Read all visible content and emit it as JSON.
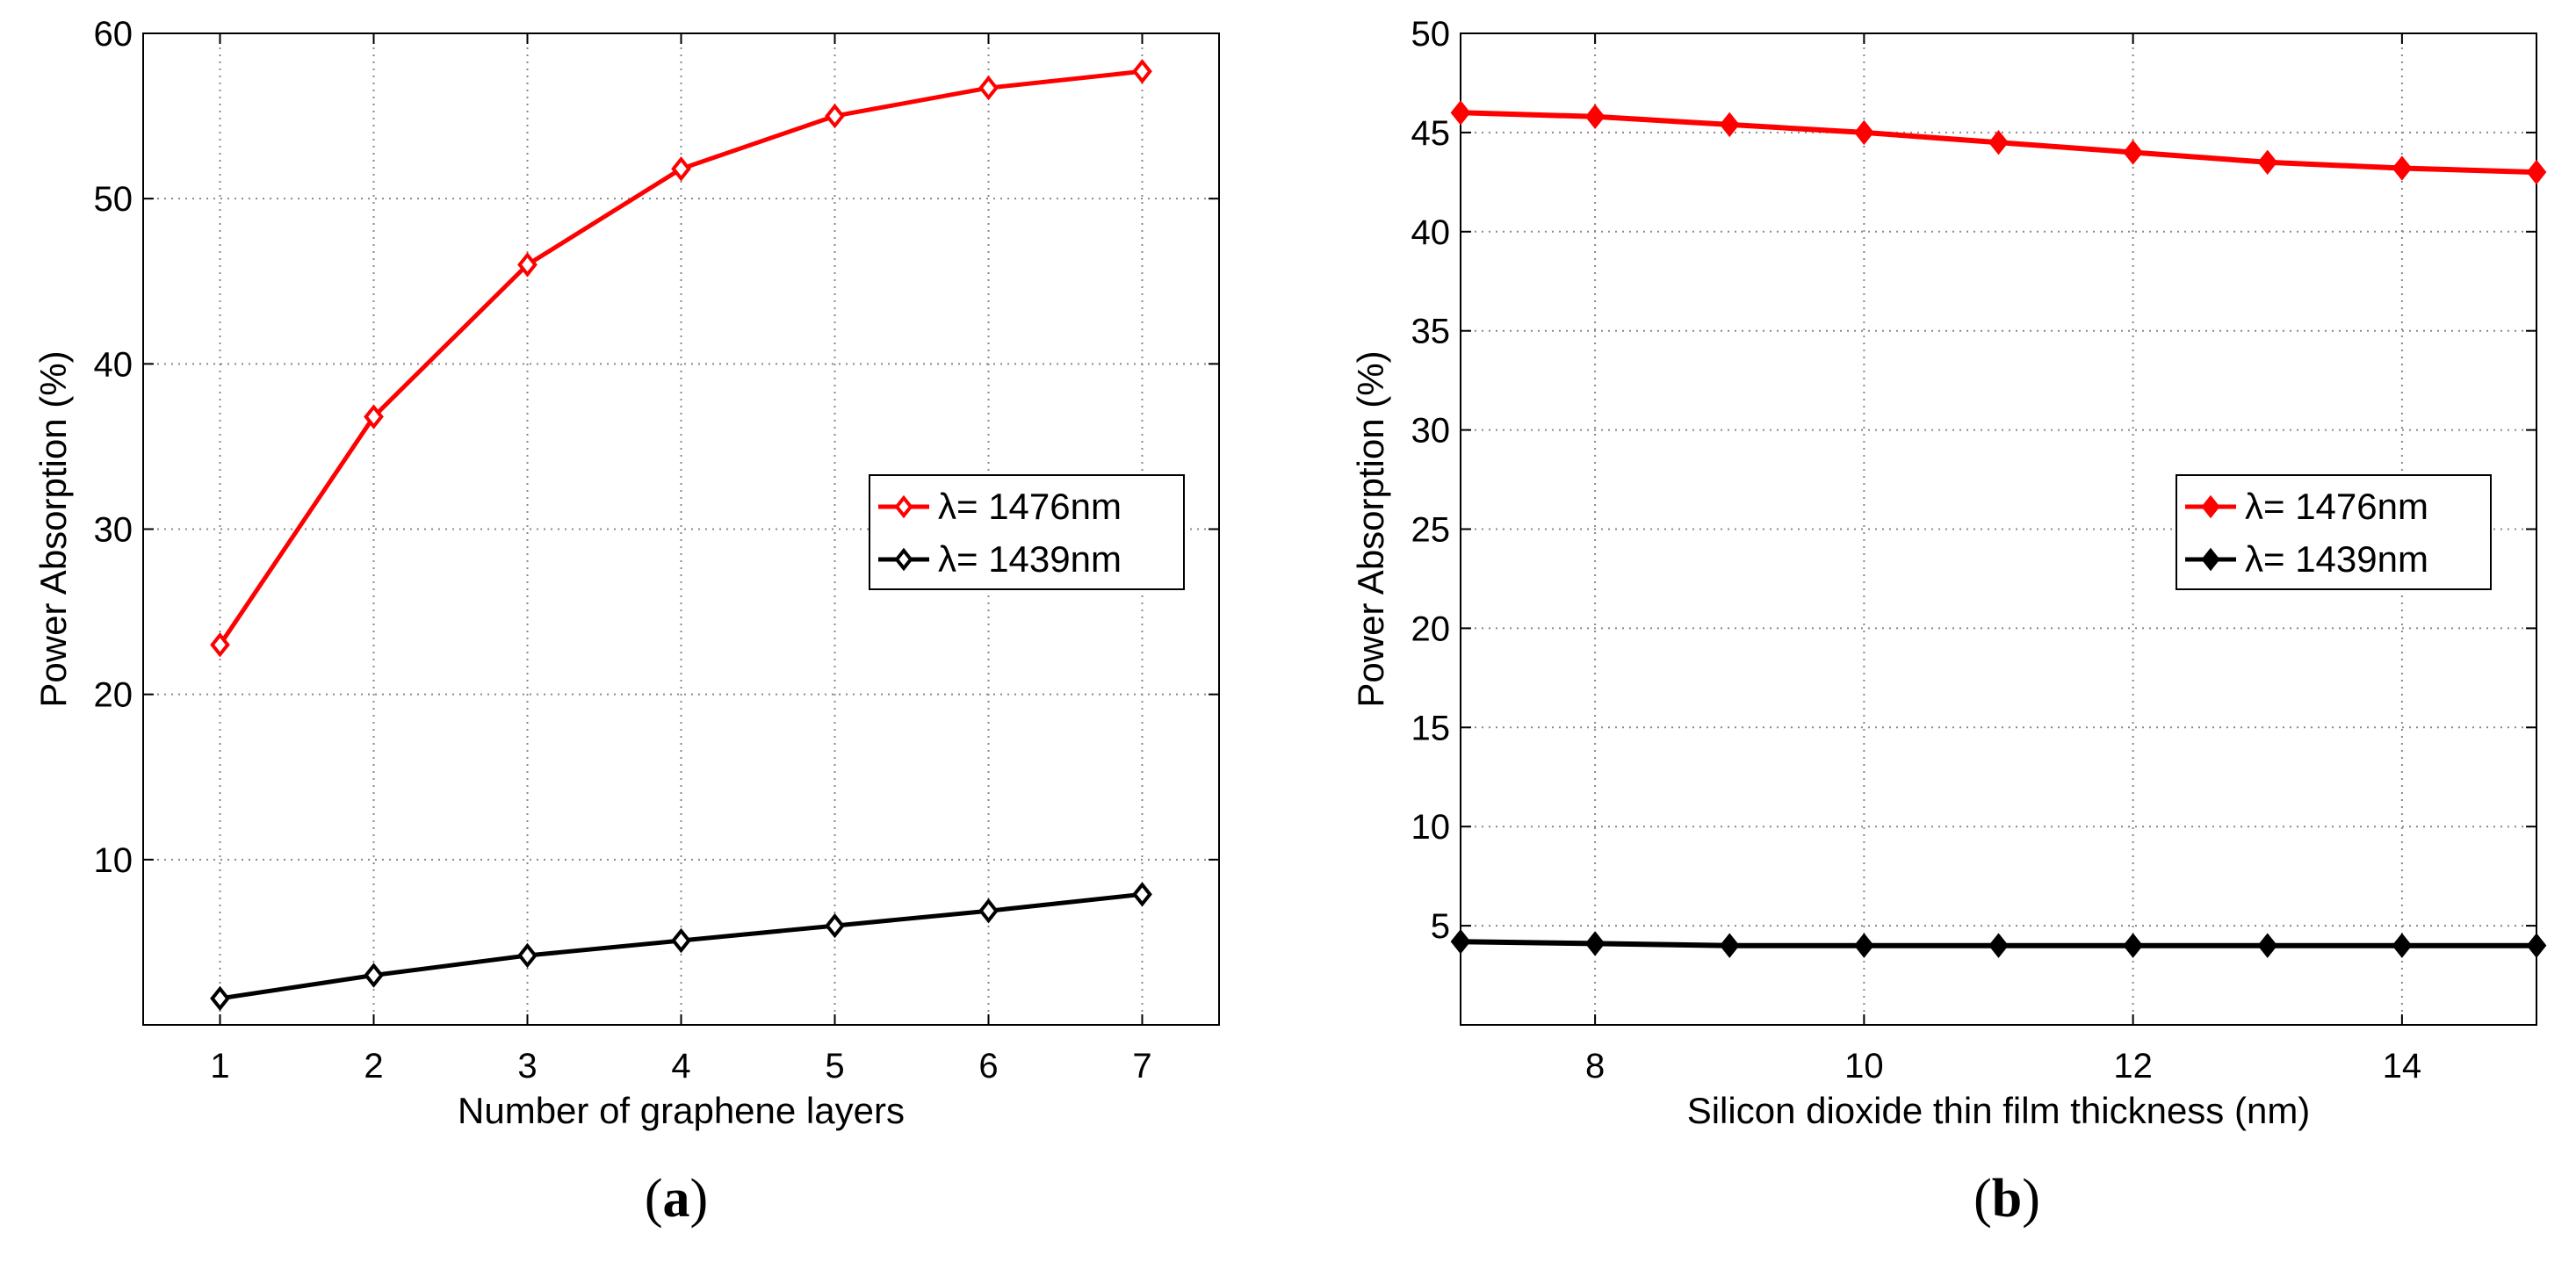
{
  "colors": {
    "series_red": "#ff0000",
    "series_black": "#000000",
    "grid": "#888888",
    "background": "#ffffff"
  },
  "chart_data": [
    {
      "type": "line",
      "panel_label": "a",
      "xlabel": "Number of graphene layers",
      "ylabel": "Power Absorption (%)",
      "xlim": [
        0.5,
        7.5
      ],
      "ylim": [
        0,
        60
      ],
      "xticks": [
        1,
        2,
        3,
        4,
        5,
        6,
        7
      ],
      "yticks": [
        10,
        20,
        30,
        40,
        50,
        60
      ],
      "grid": true,
      "legend_position": "center-right",
      "series": [
        {
          "name": "λ= 1476nm",
          "color": "#ff0000",
          "marker": "diamond-open",
          "x": [
            1,
            2,
            3,
            4,
            5,
            6,
            7
          ],
          "y": [
            23.0,
            36.8,
            46.0,
            51.8,
            55.0,
            56.7,
            57.7
          ]
        },
        {
          "name": "λ= 1439nm",
          "color": "#000000",
          "marker": "diamond-open",
          "x": [
            1,
            2,
            3,
            4,
            5,
            6,
            7
          ],
          "y": [
            1.6,
            3.0,
            4.2,
            5.1,
            6.0,
            6.9,
            7.9
          ]
        }
      ]
    },
    {
      "type": "line",
      "panel_label": "b",
      "xlabel": "Silicon dioxide thin film thickness (nm)",
      "ylabel": "Power Absorption (%)",
      "xlim": [
        7,
        15
      ],
      "ylim": [
        0,
        50
      ],
      "xticks": [
        8,
        10,
        12,
        14
      ],
      "yticks": [
        5,
        10,
        15,
        20,
        25,
        30,
        35,
        40,
        45,
        50
      ],
      "grid": true,
      "legend_position": "center-right",
      "series": [
        {
          "name": "λ= 1476nm",
          "color": "#ff0000",
          "marker": "diamond-filled",
          "x": [
            7,
            8,
            9,
            10,
            11,
            12,
            13,
            14,
            15
          ],
          "y": [
            46.0,
            45.8,
            45.4,
            45.0,
            44.5,
            44.0,
            43.5,
            43.2,
            43.0
          ]
        },
        {
          "name": "λ= 1439nm",
          "color": "#000000",
          "marker": "diamond-filled",
          "x": [
            7,
            8,
            9,
            10,
            11,
            12,
            13,
            14,
            15
          ],
          "y": [
            4.2,
            4.1,
            4.0,
            4.0,
            4.0,
            4.0,
            4.0,
            4.0,
            4.0
          ]
        }
      ]
    }
  ]
}
